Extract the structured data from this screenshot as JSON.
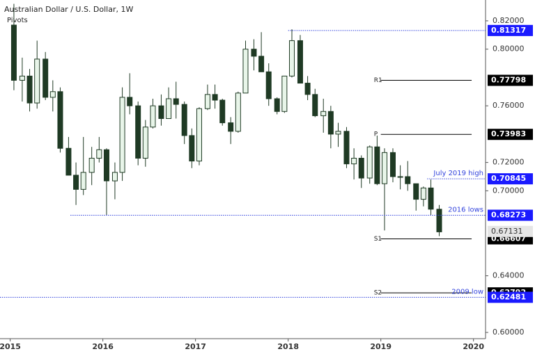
{
  "chart_data": {
    "type": "candlestick",
    "title": "Australian Dollar / U.S. Dollar, 1W",
    "subtitle": "Pivots",
    "xlim": [
      2014.89,
      2020.13
    ],
    "xticks": [
      2015,
      2016,
      2017,
      2018,
      2019,
      2020
    ],
    "ylim": [
      0.5956,
      0.8347
    ],
    "yticks": [
      {
        "value": 0.82,
        "label": "0.82000"
      },
      {
        "value": 0.8,
        "label": "0.80000"
      },
      {
        "value": 0.76,
        "label": "0.76000"
      },
      {
        "value": 0.72,
        "label": "0.72000"
      },
      {
        "value": 0.7,
        "label": "0.70000"
      },
      {
        "value": 0.64,
        "label": "0.64000"
      },
      {
        "value": 0.6,
        "label": "0.60000"
      }
    ],
    "up_color": "#e8f5e9",
    "down_color": "#1f3a24",
    "series": [
      {
        "name": "AUD/USD",
        "x": [
          2015.04,
          2015.13,
          2015.21,
          2015.29,
          2015.38,
          2015.46,
          2015.54,
          2015.63,
          2015.71,
          2015.79,
          2015.88,
          2015.96,
          2016.04,
          2016.13,
          2016.21,
          2016.29,
          2016.38,
          2016.46,
          2016.54,
          2016.63,
          2016.71,
          2016.79,
          2016.88,
          2016.96,
          2017.04,
          2017.13,
          2017.21,
          2017.29,
          2017.38,
          2017.46,
          2017.54,
          2017.63,
          2017.71,
          2017.79,
          2017.88,
          2017.96,
          2018.04,
          2018.13,
          2018.21,
          2018.29,
          2018.38,
          2018.46,
          2018.54,
          2018.63,
          2018.71,
          2018.79,
          2018.88,
          2018.96,
          2019.04,
          2019.13,
          2019.21,
          2019.29,
          2019.38,
          2019.46,
          2019.54,
          2019.63
        ],
        "open": [
          0.817,
          0.778,
          0.781,
          0.762,
          0.793,
          0.766,
          0.77,
          0.73,
          0.711,
          0.701,
          0.713,
          0.723,
          0.729,
          0.707,
          0.713,
          0.766,
          0.76,
          0.723,
          0.745,
          0.76,
          0.751,
          0.765,
          0.761,
          0.739,
          0.721,
          0.758,
          0.768,
          0.764,
          0.748,
          0.742,
          0.769,
          0.8,
          0.795,
          0.784,
          0.765,
          0.756,
          0.781,
          0.806,
          0.776,
          0.768,
          0.753,
          0.756,
          0.74,
          0.742,
          0.719,
          0.723,
          0.709,
          0.731,
          0.705,
          0.727,
          0.71,
          0.71,
          0.705,
          0.694,
          0.702,
          0.687
        ],
        "high": [
          0.832,
          0.794,
          0.786,
          0.806,
          0.798,
          0.778,
          0.773,
          0.738,
          0.72,
          0.738,
          0.731,
          0.738,
          0.73,
          0.72,
          0.773,
          0.783,
          0.763,
          0.75,
          0.765,
          0.768,
          0.773,
          0.777,
          0.763,
          0.744,
          0.759,
          0.775,
          0.775,
          0.765,
          0.752,
          0.77,
          0.806,
          0.807,
          0.812,
          0.79,
          0.766,
          0.781,
          0.814,
          0.81,
          0.781,
          0.772,
          0.765,
          0.76,
          0.748,
          0.745,
          0.73,
          0.725,
          0.732,
          0.739,
          0.73,
          0.73,
          0.718,
          0.721,
          0.705,
          0.703,
          0.708,
          0.69
        ],
        "low": [
          0.771,
          0.763,
          0.756,
          0.758,
          0.764,
          0.756,
          0.727,
          0.711,
          0.69,
          0.697,
          0.704,
          0.72,
          0.683,
          0.694,
          0.707,
          0.754,
          0.718,
          0.717,
          0.744,
          0.746,
          0.751,
          0.751,
          0.733,
          0.716,
          0.718,
          0.757,
          0.758,
          0.746,
          0.733,
          0.741,
          0.769,
          0.785,
          0.784,
          0.76,
          0.754,
          0.755,
          0.78,
          0.776,
          0.764,
          0.752,
          0.741,
          0.73,
          0.731,
          0.716,
          0.708,
          0.702,
          0.705,
          0.704,
          0.672,
          0.706,
          0.701,
          0.7,
          0.686,
          0.689,
          0.683,
          0.668
        ],
        "close": [
          0.778,
          0.781,
          0.762,
          0.793,
          0.766,
          0.77,
          0.73,
          0.711,
          0.701,
          0.713,
          0.723,
          0.729,
          0.707,
          0.713,
          0.766,
          0.76,
          0.723,
          0.745,
          0.76,
          0.751,
          0.765,
          0.761,
          0.739,
          0.721,
          0.758,
          0.768,
          0.764,
          0.748,
          0.742,
          0.769,
          0.8,
          0.795,
          0.784,
          0.765,
          0.756,
          0.781,
          0.806,
          0.776,
          0.768,
          0.753,
          0.756,
          0.74,
          0.742,
          0.719,
          0.723,
          0.709,
          0.731,
          0.705,
          0.727,
          0.71,
          0.71,
          0.705,
          0.694,
          0.702,
          0.687,
          0.671
        ]
      }
    ],
    "levels": [
      {
        "value": 0.81317,
        "x0": 2018.0,
        "style": "dotted",
        "color": "#3344dd"
      },
      {
        "name": "R1",
        "value": 0.77798,
        "x0": 2019.0,
        "style": "solid",
        "color": "#000000"
      },
      {
        "name": "P",
        "value": 0.73983,
        "x0": 2019.0,
        "style": "solid",
        "color": "#000000"
      },
      {
        "name": "July 2019 high",
        "value": 0.70845,
        "x0": 2019.5,
        "style": "dotted",
        "color": "#3344dd"
      },
      {
        "name": "2016 lows",
        "value": 0.68273,
        "x0": 2015.65,
        "style": "dotted",
        "color": "#3344dd"
      },
      {
        "name": "S1",
        "value": 0.66607,
        "x0": 2019.0,
        "style": "solid",
        "color": "#000000"
      },
      {
        "name": "S2",
        "value": 0.62792,
        "x0": 2019.0,
        "style": "solid",
        "color": "#000000"
      },
      {
        "name": "2009 low",
        "value": 0.62481,
        "x0": 2014.89,
        "style": "dotted",
        "color": "#3344dd"
      }
    ],
    "last_price": 0.67131
  }
}
